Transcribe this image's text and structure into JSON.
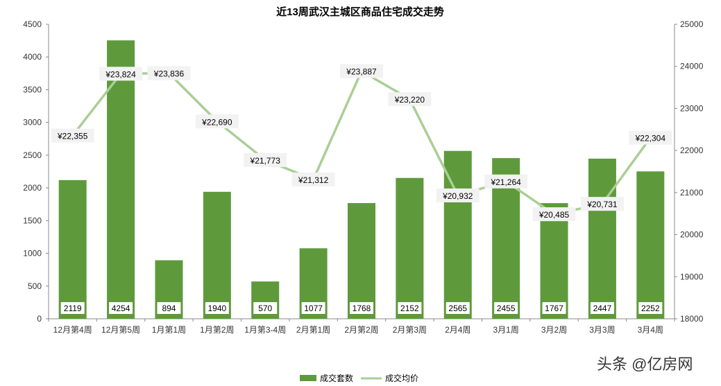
{
  "chart_data": {
    "type": "bar+line",
    "title": "近13周武汉主城区商品住宅成交走势",
    "categories": [
      "12月第4周",
      "12月第5周",
      "1月第1周",
      "1月第2周",
      "1月第3-4周",
      "2月第1周",
      "2月第2周",
      "2月第3周",
      "2月4周",
      "3月1周",
      "3月2周",
      "3月3周",
      "3月4周"
    ],
    "series": [
      {
        "name": "成交套数",
        "type": "bar",
        "axis": "left",
        "color": "#5e9a3c",
        "values": [
          2119,
          4254,
          894,
          1940,
          570,
          1077,
          1768,
          2152,
          2565,
          2455,
          1767,
          2447,
          2252
        ]
      },
      {
        "name": "成交均价",
        "type": "line",
        "axis": "right",
        "color": "#a9cf95",
        "values": [
          22355,
          23824,
          23836,
          22690,
          21773,
          21312,
          23887,
          23220,
          20932,
          21264,
          20485,
          20731,
          22304
        ],
        "labels": [
          "¥22,355",
          "¥23,824",
          "¥23,836",
          "¥22,690",
          "¥21,773",
          "¥21,312",
          "¥23,887",
          "¥23,220",
          "¥20,932",
          "¥21,264",
          "¥20,485",
          "¥20,731",
          "¥22,304"
        ]
      }
    ],
    "y_left": {
      "range": [
        0,
        4500
      ],
      "ticks": [
        0,
        500,
        1000,
        1500,
        2000,
        2500,
        3000,
        3500,
        4000,
        4500
      ]
    },
    "y_right": {
      "range": [
        18000,
        25000
      ],
      "ticks": [
        18000,
        19000,
        20000,
        21000,
        22000,
        23000,
        24000,
        25000
      ]
    },
    "grid": false,
    "legend": "bottom"
  },
  "watermark": "头条 @亿房网"
}
